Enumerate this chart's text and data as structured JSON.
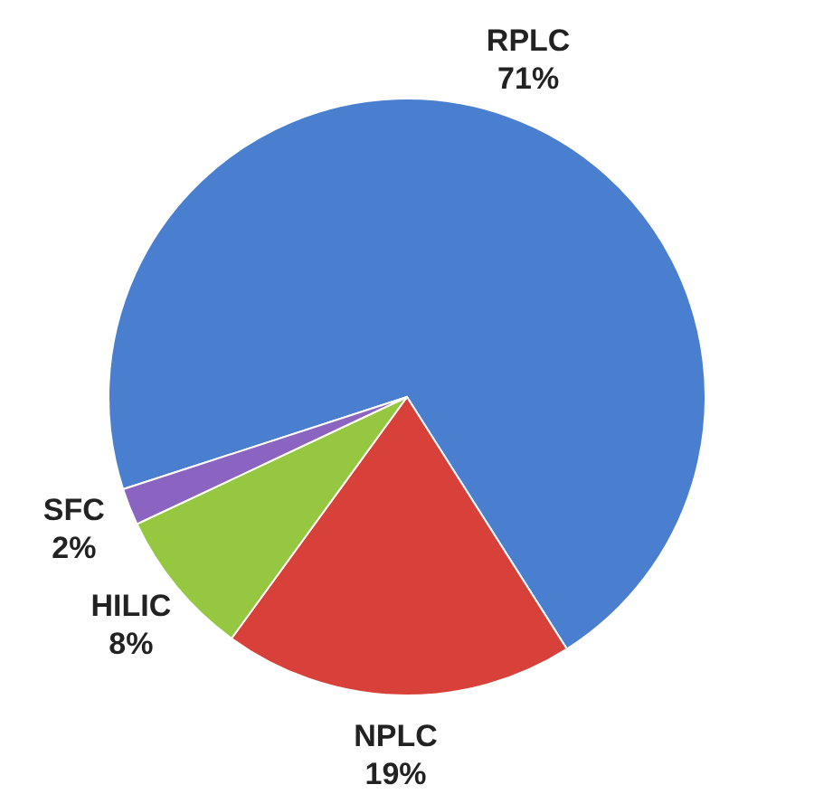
{
  "chart_data": {
    "type": "pie",
    "categories": [
      "RPLC",
      "NPLC",
      "HILIC",
      "SFC"
    ],
    "values": [
      71,
      19,
      8,
      2
    ],
    "colors": [
      "#4a7fcf",
      "#d8403a",
      "#95c840",
      "#8a64c0"
    ],
    "value_labels": [
      "71%",
      "19%",
      "8%",
      "2%"
    ]
  }
}
